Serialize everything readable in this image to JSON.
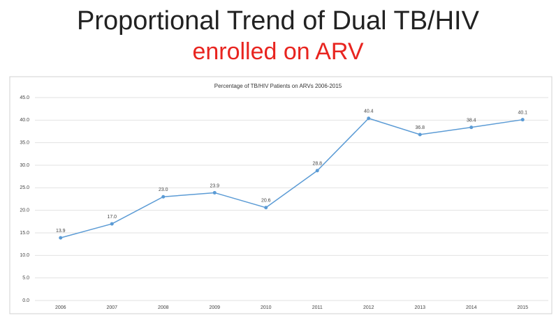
{
  "header": {
    "title": "Proportional Trend of Dual TB/HIV",
    "subtitle": "enrolled on ARV"
  },
  "chart_data": {
    "type": "line",
    "title": "Percentage of TB/HIV Patients on ARVs 2006-2015",
    "categories": [
      "2006",
      "2007",
      "2008",
      "2009",
      "2010",
      "2011",
      "2012",
      "2013",
      "2014",
      "2015"
    ],
    "values": [
      13.9,
      17.0,
      23.0,
      23.9,
      20.6,
      28.8,
      40.4,
      36.8,
      38.4,
      40.1
    ],
    "value_labels": [
      "13.9",
      "17.0",
      "23.0",
      "23.9",
      "20.6",
      "28.8",
      "40.4",
      "36.8",
      "38.4",
      "40.1"
    ],
    "color": "#5b9bd5",
    "ylim": [
      0,
      45
    ],
    "yticks": [
      {
        "value": 0,
        "label": "0.0"
      },
      {
        "value": 5,
        "label": "5.0"
      },
      {
        "value": 10,
        "label": "10.0"
      },
      {
        "value": 15,
        "label": "15.0"
      },
      {
        "value": 20,
        "label": "20.0"
      },
      {
        "value": 25,
        "label": "25.0"
      },
      {
        "value": 30,
        "label": "30.0"
      },
      {
        "value": 35,
        "label": "35.0"
      },
      {
        "value": 40,
        "label": "40.0"
      },
      {
        "value": 45,
        "label": "45.0"
      }
    ],
    "grid": true
  }
}
